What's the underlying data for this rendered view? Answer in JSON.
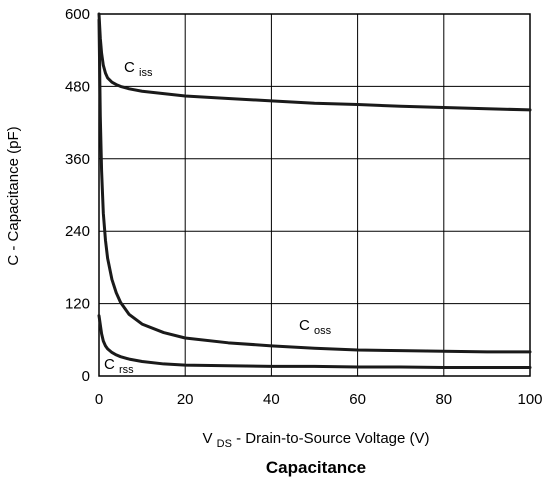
{
  "chart_data": {
    "type": "line",
    "title": "Capacitance",
    "xlabel": {
      "main": "V",
      "sub": "DS",
      "rest": " - Drain-to-Source Voltage (V)"
    },
    "ylabel": "C - Capacitance (pF)",
    "xlim": [
      0,
      100
    ],
    "ylim": [
      0,
      600
    ],
    "x_ticks": [
      0,
      20,
      40,
      60,
      80,
      100
    ],
    "y_ticks": [
      0,
      120,
      240,
      360,
      480,
      600
    ],
    "grid": true,
    "series": [
      {
        "name": "Ciss",
        "label_main": "C",
        "label_sub": "iss",
        "x": [
          0,
          0.3,
          0.6,
          1,
          1.5,
          2,
          3,
          4,
          5,
          7,
          10,
          15,
          20,
          30,
          40,
          50,
          60,
          70,
          80,
          90,
          100
        ],
        "y": [
          600,
          560,
          535,
          515,
          502,
          494,
          487,
          483,
          480,
          476,
          472,
          468,
          464,
          460,
          456,
          452,
          450,
          447,
          445,
          443,
          441
        ]
      },
      {
        "name": "Coss",
        "label_main": "C",
        "label_sub": "oss",
        "x": [
          0,
          0.3,
          0.6,
          1,
          1.5,
          2,
          3,
          4,
          5,
          7,
          10,
          15,
          20,
          30,
          40,
          50,
          60,
          70,
          80,
          90,
          100
        ],
        "y": [
          590,
          430,
          340,
          270,
          225,
          195,
          160,
          138,
          122,
          102,
          86,
          72,
          63,
          55,
          50,
          46,
          43,
          42,
          41,
          40,
          40
        ]
      },
      {
        "name": "Crss",
        "label_main": "C",
        "label_sub": "rss",
        "x": [
          0,
          0.3,
          0.6,
          1,
          1.5,
          2,
          3,
          4,
          5,
          7,
          10,
          15,
          20,
          30,
          40,
          50,
          60,
          70,
          80,
          90,
          100
        ],
        "y": [
          100,
          85,
          70,
          58,
          50,
          45,
          39,
          35,
          32,
          28,
          24,
          20,
          18,
          17,
          16,
          16,
          15,
          15,
          14,
          14,
          14
        ]
      }
    ]
  }
}
